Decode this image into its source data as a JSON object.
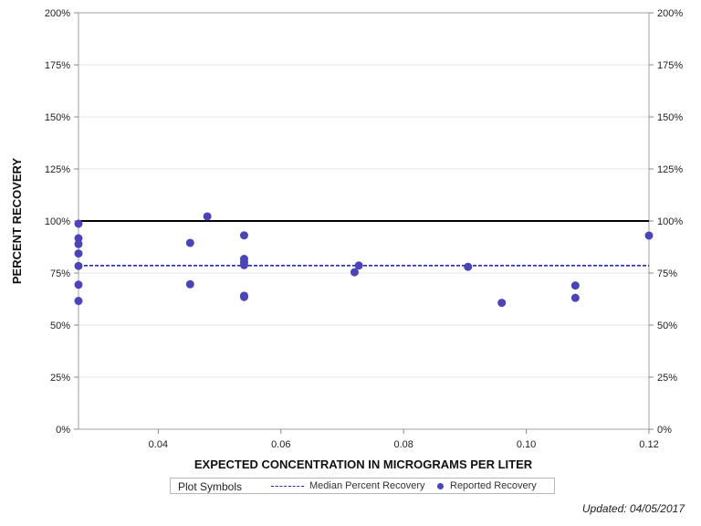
{
  "chart_data": {
    "type": "scatter",
    "xlabel": "EXPECTED CONCENTRATION IN MICROGRAMS PER LITER",
    "ylabel": "PERCENT RECOVERY",
    "xlim": [
      0.027,
      0.12
    ],
    "ylim": [
      0,
      200
    ],
    "x_ticks": [
      0.04,
      0.06,
      0.08,
      0.1,
      0.12
    ],
    "x_tick_labels": [
      "0.04",
      "0.06",
      "0.08",
      "0.10",
      "0.12"
    ],
    "y_ticks": [
      0,
      25,
      50,
      75,
      100,
      125,
      150,
      175,
      200
    ],
    "y_tick_labels": [
      "0%",
      "25%",
      "50%",
      "75%",
      "100%",
      "125%",
      "150%",
      "175%",
      "200%"
    ],
    "grid": true,
    "reference_line": 100,
    "median": 78.6,
    "series": [
      {
        "name": "Reported Recovery",
        "color": "#4a44b8",
        "points": [
          [
            0.027,
            98.7
          ],
          [
            0.027,
            91.7
          ],
          [
            0.027,
            88.9
          ],
          [
            0.027,
            84.4
          ],
          [
            0.027,
            78.4
          ],
          [
            0.027,
            69.4
          ],
          [
            0.027,
            61.6
          ],
          [
            0.0452,
            89.5
          ],
          [
            0.0452,
            69.6
          ],
          [
            0.048,
            102.2
          ],
          [
            0.054,
            93.1
          ],
          [
            0.054,
            81.8
          ],
          [
            0.054,
            80.2
          ],
          [
            0.054,
            78.8
          ],
          [
            0.054,
            64.1
          ],
          [
            0.054,
            63.5
          ],
          [
            0.072,
            75.4
          ],
          [
            0.0727,
            78.6
          ],
          [
            0.0905,
            78.0
          ],
          [
            0.096,
            60.7
          ],
          [
            0.108,
            69.0
          ],
          [
            0.108,
            63.1
          ],
          [
            0.12,
            93.0
          ]
        ]
      }
    ]
  },
  "legend": {
    "title": "Plot Symbols",
    "median_label": "Median Percent Recovery",
    "reported_label": "Reported Recovery"
  },
  "footer": {
    "updated": "Updated: 04/05/2017"
  },
  "colors": {
    "median": "#2b2bb0",
    "reference": "#000000",
    "point": "#4a44b8",
    "grid": "#e6e6e6"
  }
}
